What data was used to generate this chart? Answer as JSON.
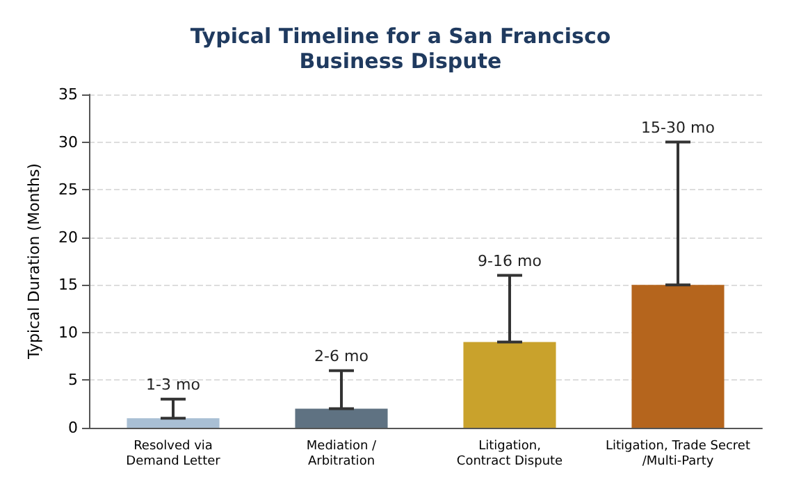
{
  "chart_data": {
    "type": "bar",
    "title": "Typical Timeline for a San Francisco\nBusiness Dispute",
    "ylabel": "Typical Duration (Months)",
    "categories": [
      "Resolved via\nDemand Letter",
      "Mediation /\nArbitration",
      "Litigation,\nContract Dispute",
      "Litigation, Trade Secret\n/Multi-Party"
    ],
    "values": [
      1,
      2,
      9,
      15
    ],
    "colors": [
      "#a9bfd4",
      "#5f7282",
      "#c9a22c",
      "#b5651d"
    ],
    "errors": [
      [
        1,
        3
      ],
      [
        2,
        6
      ],
      [
        9,
        16
      ],
      [
        15,
        30
      ]
    ],
    "annotations": [
      {
        "text": "1-3 mo",
        "x": "Resolved via\nDemand Letter",
        "y": 3
      },
      {
        "text": "2-6 mo",
        "x": "Mediation /\nArbitration",
        "y": 6
      },
      {
        "text": "9-16 mo",
        "x": "Litigation,\nContract Dispute",
        "y": 16
      },
      {
        "text": "15-30 mo",
        "x": "Litigation, Trade Secret\n/Multi-Party",
        "y": 30
      }
    ],
    "ylim": [
      0,
      35
    ],
    "yticks": [
      0,
      5,
      10,
      15,
      20,
      25,
      30,
      35
    ],
    "grid": "y"
  }
}
